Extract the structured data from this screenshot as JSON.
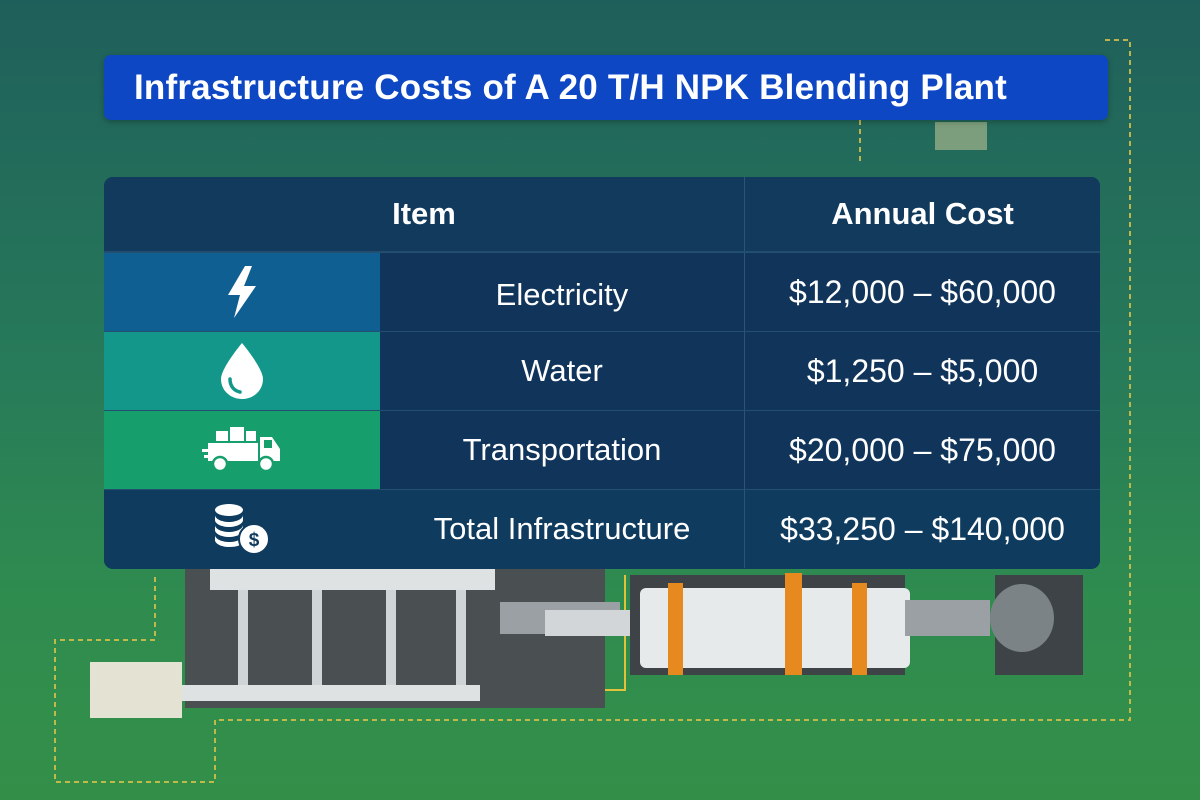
{
  "title": "Infrastructure Costs of A 20 T/H NPK Blending Plant",
  "colors": {
    "title_bg": "#0d47c4",
    "table_bg": "#0f3b5f",
    "electricity": "#105f93",
    "water": "#12978a",
    "transport": "#169f6c"
  },
  "table": {
    "headers": {
      "item": "Item",
      "cost": "Annual Cost"
    },
    "rows": [
      {
        "icon": "lightning-bolt-icon",
        "item": "Electricity",
        "cost": "$12,000 – $60,000"
      },
      {
        "icon": "water-drop-icon",
        "item": "Water",
        "cost": "$1,250 – $5,000"
      },
      {
        "icon": "delivery-truck-icon",
        "item": "Transportation",
        "cost": "$20,000 – $75,000"
      },
      {
        "icon": "money-coins-icon",
        "item": "Total Infrastructure",
        "cost": "$33,250 – $140,000"
      }
    ]
  }
}
